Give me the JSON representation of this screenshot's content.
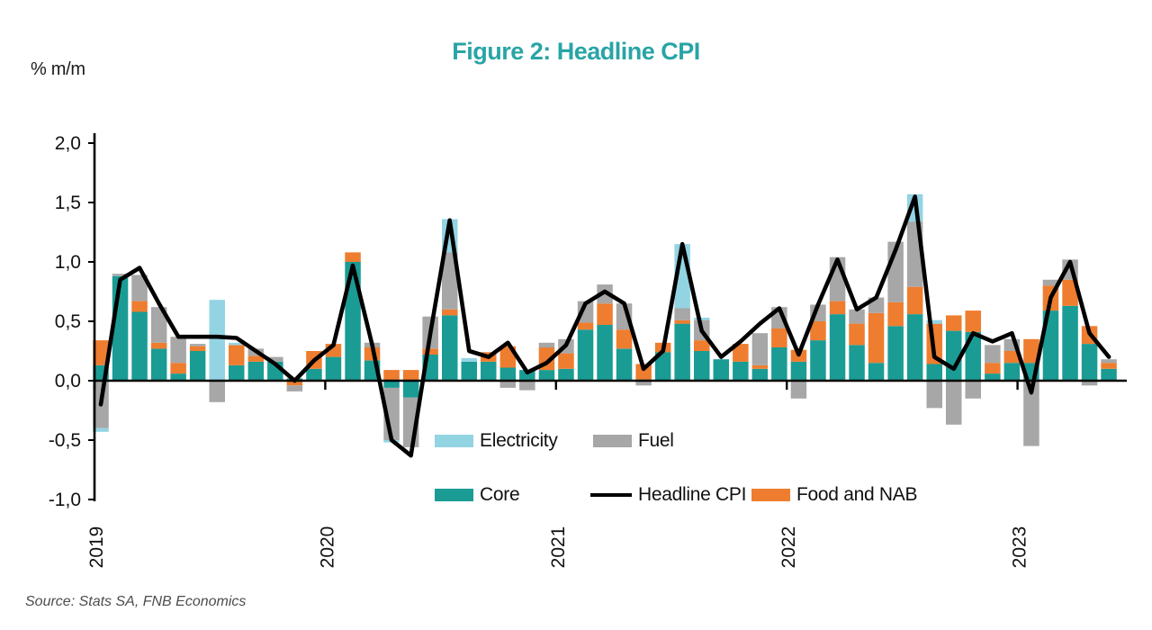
{
  "title": "Figure 2: Headline CPI",
  "title_color": "#29A4A6",
  "ylabel": "% m/m",
  "footer": {
    "source": "Source: Stats SA, FNB Economics"
  },
  "chart_data": {
    "type": "bar",
    "subtype": "stacked contribution bars with line overlay",
    "title": "Figure 2: Headline CPI",
    "ylabel": "% m/m",
    "ylim": [
      -1.0,
      2.0
    ],
    "ytick_values": [
      2.0,
      1.5,
      1.0,
      0.5,
      0.0,
      -0.5,
      -1.0
    ],
    "ytick_labels": [
      "2,0",
      "1,5",
      "1,0",
      "0,5",
      "0,0",
      "-0,5",
      "-1,0"
    ],
    "grid": false,
    "legend_position": "inside-bottom",
    "year_ticks": [
      "2019",
      "2020",
      "2021",
      "2022",
      "2023"
    ],
    "x": [
      "Jan-19",
      "Feb-19",
      "Mar-19",
      "Apr-19",
      "May-19",
      "Jun-19",
      "Jul-19",
      "Aug-19",
      "Sep-19",
      "Oct-19",
      "Nov-19",
      "Dec-19",
      "Jan-20",
      "Feb-20",
      "Mar-20",
      "Apr-20",
      "May-20",
      "Jun-20",
      "Jul-20",
      "Aug-20",
      "Sep-20",
      "Oct-20",
      "Nov-20",
      "Dec-20",
      "Jan-21",
      "Feb-21",
      "Mar-21",
      "Apr-21",
      "May-21",
      "Jun-21",
      "Jul-21",
      "Aug-21",
      "Sep-21",
      "Oct-21",
      "Nov-21",
      "Dec-21",
      "Jan-22",
      "Feb-22",
      "Mar-22",
      "Apr-22",
      "May-22",
      "Jun-22",
      "Jul-22",
      "Aug-22",
      "Sep-22",
      "Oct-22",
      "Nov-22",
      "Dec-22",
      "Jan-23",
      "Feb-23",
      "Mar-23",
      "Apr-23",
      "May-23"
    ],
    "stack_order": [
      "Core",
      "Food and NAB",
      "Fuel",
      "Electricity"
    ],
    "series": [
      {
        "name": "Core",
        "type": "bar",
        "color": "#1A9C95",
        "values": [
          0.13,
          0.88,
          0.58,
          0.27,
          0.06,
          0.25,
          0.0,
          0.13,
          0.16,
          0.16,
          0.02,
          0.1,
          0.2,
          1.0,
          0.17,
          -0.06,
          -0.14,
          0.22,
          0.55,
          0.16,
          0.16,
          0.11,
          0.09,
          0.09,
          0.1,
          0.43,
          0.47,
          0.27,
          0.01,
          0.24,
          0.48,
          0.25,
          0.18,
          0.16,
          0.1,
          0.28,
          0.16,
          0.34,
          0.56,
          0.3,
          0.15,
          0.46,
          0.56,
          0.14,
          0.42,
          0.41,
          0.06,
          0.15,
          0.15,
          0.59,
          0.63,
          0.31,
          0.1
        ]
      },
      {
        "name": "Food and NAB",
        "type": "bar",
        "color": "#EE7D2F",
        "values": [
          0.21,
          0.0,
          0.09,
          0.05,
          0.09,
          0.04,
          0.0,
          0.17,
          0.05,
          0.0,
          -0.04,
          0.15,
          0.11,
          0.08,
          0.11,
          0.09,
          0.09,
          0.05,
          0.05,
          0.0,
          0.08,
          0.18,
          0.0,
          0.19,
          0.13,
          0.06,
          0.18,
          0.16,
          0.13,
          0.08,
          0.03,
          0.09,
          0.0,
          0.15,
          0.03,
          0.16,
          0.1,
          0.16,
          0.11,
          0.18,
          0.42,
          0.2,
          0.23,
          0.34,
          0.13,
          0.18,
          0.09,
          0.1,
          0.2,
          0.21,
          0.22,
          0.15,
          0.05
        ]
      },
      {
        "name": "Fuel",
        "type": "bar",
        "color": "#A7A7A7",
        "values": [
          -0.4,
          0.02,
          0.22,
          0.3,
          0.22,
          0.02,
          -0.18,
          0.0,
          0.06,
          0.04,
          -0.05,
          0.0,
          0.0,
          0.0,
          0.04,
          -0.44,
          -0.42,
          0.27,
          0.48,
          0.0,
          0.0,
          -0.06,
          -0.08,
          0.04,
          0.12,
          0.18,
          0.16,
          0.22,
          -0.04,
          0.0,
          0.1,
          0.17,
          0.0,
          0.0,
          0.27,
          0.18,
          -0.15,
          0.14,
          0.37,
          0.12,
          0.13,
          0.51,
          0.55,
          -0.23,
          -0.37,
          -0.15,
          0.15,
          0.1,
          -0.55,
          0.05,
          0.17,
          -0.04,
          0.03
        ]
      },
      {
        "name": "Electricity",
        "type": "bar",
        "color": "#93D4E3",
        "values": [
          -0.03,
          0.0,
          0.0,
          0.0,
          0.0,
          0.0,
          0.68,
          0.02,
          0.0,
          0.0,
          0.0,
          0.0,
          0.0,
          0.0,
          0.0,
          -0.02,
          0.0,
          0.0,
          0.28,
          0.03,
          0.0,
          0.0,
          0.0,
          0.0,
          0.0,
          0.0,
          0.0,
          0.0,
          0.0,
          0.0,
          0.54,
          0.02,
          0.0,
          0.0,
          0.0,
          0.0,
          0.0,
          0.0,
          0.0,
          0.0,
          0.0,
          0.0,
          0.23,
          0.03,
          0.0,
          0.0,
          0.0,
          0.0,
          0.0,
          0.0,
          0.0,
          0.0,
          0.0
        ]
      },
      {
        "name": "Headline CPI",
        "type": "line",
        "color": "#000000",
        "values": [
          -0.2,
          0.85,
          0.95,
          0.65,
          0.37,
          0.37,
          0.37,
          0.36,
          0.25,
          0.14,
          0.0,
          0.17,
          0.3,
          0.97,
          0.3,
          -0.5,
          -0.63,
          0.4,
          1.35,
          0.25,
          0.2,
          0.32,
          0.07,
          0.15,
          0.3,
          0.65,
          0.75,
          0.65,
          0.1,
          0.25,
          1.15,
          0.42,
          0.2,
          0.33,
          0.48,
          0.61,
          0.22,
          0.64,
          1.02,
          0.6,
          0.7,
          1.1,
          1.55,
          0.2,
          0.1,
          0.4,
          0.33,
          0.4,
          -0.1,
          0.7,
          1.0,
          0.4,
          0.2
        ]
      }
    ],
    "legend": [
      {
        "label": "Electricity",
        "color": "#93D4E3",
        "kind": "swatch"
      },
      {
        "label": "Fuel",
        "color": "#A7A7A7",
        "kind": "swatch"
      },
      {
        "label": "Core",
        "color": "#1A9C95",
        "kind": "swatch"
      },
      {
        "label": "Headline CPI",
        "color": "#000000",
        "kind": "line"
      },
      {
        "label": "Food and NAB",
        "color": "#EE7D2F",
        "kind": "swatch"
      }
    ]
  }
}
